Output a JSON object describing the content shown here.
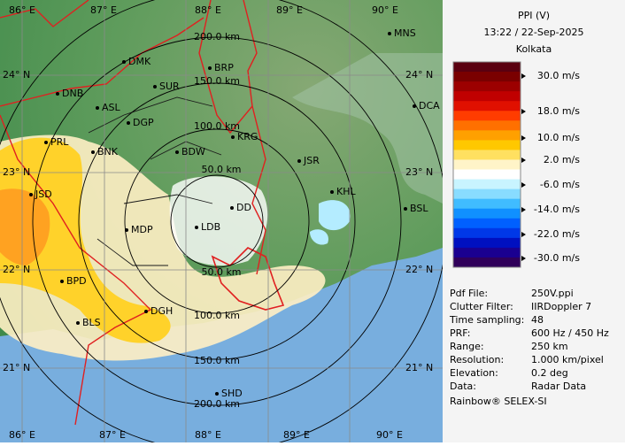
{
  "header": {
    "title": "PPI (V)",
    "datetime": "13:22 / 22-Sep-2025",
    "site": "Kolkata"
  },
  "legend": {
    "labels": [
      "30.0 m/s",
      "18.0 m/s",
      "10.0 m/s",
      "2.0 m/s",
      "-6.0 m/s",
      "-14.0 m/s",
      "-22.0 m/s",
      "-30.0 m/s"
    ],
    "colors": [
      "#5a0010",
      "#7a0000",
      "#9c0000",
      "#c00000",
      "#e01000",
      "#ff3c00",
      "#ff7000",
      "#ffa000",
      "#ffc800",
      "#ffe060",
      "#fff4c8",
      "#ffffff",
      "#c8f4ff",
      "#88dcff",
      "#40bcff",
      "#1090ff",
      "#0060ff",
      "#0038e8",
      "#0010c0",
      "#1a0090",
      "#30005a"
    ]
  },
  "info": {
    "rows": [
      [
        "Pdf File:",
        "250V.ppi"
      ],
      [
        "Clutter Filter:",
        "IIRDoppler 7"
      ],
      [
        "Time sampling:",
        "48"
      ],
      [
        "PRF:",
        "600 Hz / 450 Hz"
      ],
      [
        "Range:",
        "250 km"
      ],
      [
        "Resolution:",
        "1.000 km/pixel"
      ],
      [
        "Elevation:",
        "0.2 deg"
      ],
      [
        "Data:",
        "Radar Data"
      ]
    ],
    "footer": "Rainbow® SELEX-SI"
  },
  "map": {
    "longitudes": [
      "86° E",
      "87° E",
      "88° E",
      "89° E",
      "90° E"
    ],
    "latitudes": [
      "24° N",
      "23° N",
      "22° N",
      "21° N"
    ],
    "ranges": [
      "50.0 km",
      "100.0 km",
      "150.0 km",
      "200.0 km"
    ],
    "cities": [
      "MNS",
      "DMK",
      "BRP",
      "DNB",
      "SUR",
      "ASL",
      "DGP",
      "DCA",
      "PRL",
      "BNK",
      "KRG",
      "BDW",
      "JSR",
      "KHL",
      "JSD",
      "BSL",
      "MDP",
      "LDB",
      "DD",
      "BPD",
      "DGH",
      "BLS",
      "SHD"
    ]
  }
}
